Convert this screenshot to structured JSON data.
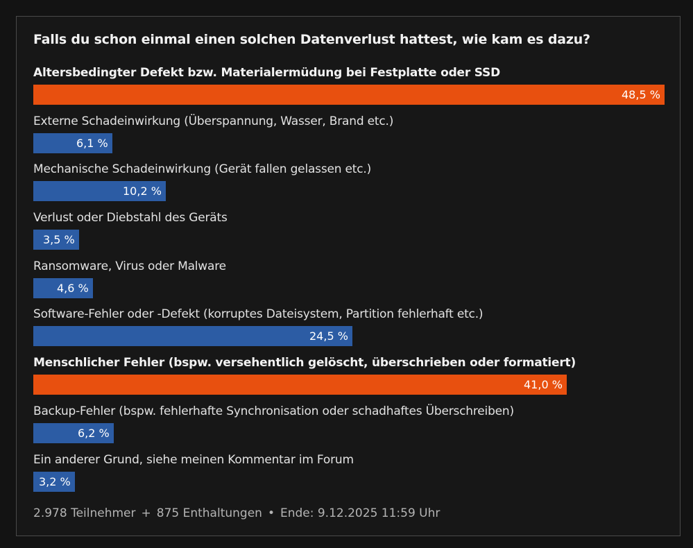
{
  "poll": {
    "title": "Falls du schon einmal einen solchen Datenverlust hattest, wie kam es dazu?",
    "footer": {
      "participants": "2.978 Teilnehmer",
      "abstentions": "875 Enthaltungen",
      "end": "Ende: 9.12.2025 11:59 Uhr",
      "sep1": "+",
      "sep2": "•"
    }
  },
  "colors": {
    "top": "#e8500f",
    "normal": "#2c5ca4",
    "background": "#171717"
  },
  "chart_data": {
    "type": "bar",
    "orientation": "horizontal",
    "title": "Falls du schon einmal einen solchen Datenverlust hattest, wie kam es dazu?",
    "xlim": [
      0,
      48.5
    ],
    "categories": [
      "Altersbedingter Defekt bzw. Materialermüdung bei Festplatte oder SSD",
      "Externe Schadeinwirkung (Überspannung, Wasser, Brand etc.)",
      "Mechanische Schadeinwirkung (Gerät fallen gelassen etc.)",
      "Verlust oder Diebstahl des Geräts",
      "Ransomware, Virus oder Malware",
      "Software-Fehler oder -Defekt (korruptes Dateisystem, Partition fehlerhaft etc.)",
      "Menschlicher Fehler (bspw. versehentlich gelöscht, überschrieben oder formatiert)",
      "Backup-Fehler (bspw. fehlerhafte Synchronisation oder schadhaftes Überschreiben)",
      "Ein anderer Grund, siehe meinen Kommentar im Forum"
    ],
    "values": [
      48.5,
      6.1,
      10.2,
      3.5,
      4.6,
      24.5,
      41.0,
      6.2,
      3.2
    ],
    "value_labels": [
      "48,5 %",
      "6,1 %",
      "10,2 %",
      "3,5 %",
      "4,6 %",
      "24,5 %",
      "41,0 %",
      "6,2 %",
      "3,2 %"
    ],
    "highlighted": [
      true,
      false,
      false,
      false,
      false,
      false,
      true,
      false,
      false
    ]
  }
}
